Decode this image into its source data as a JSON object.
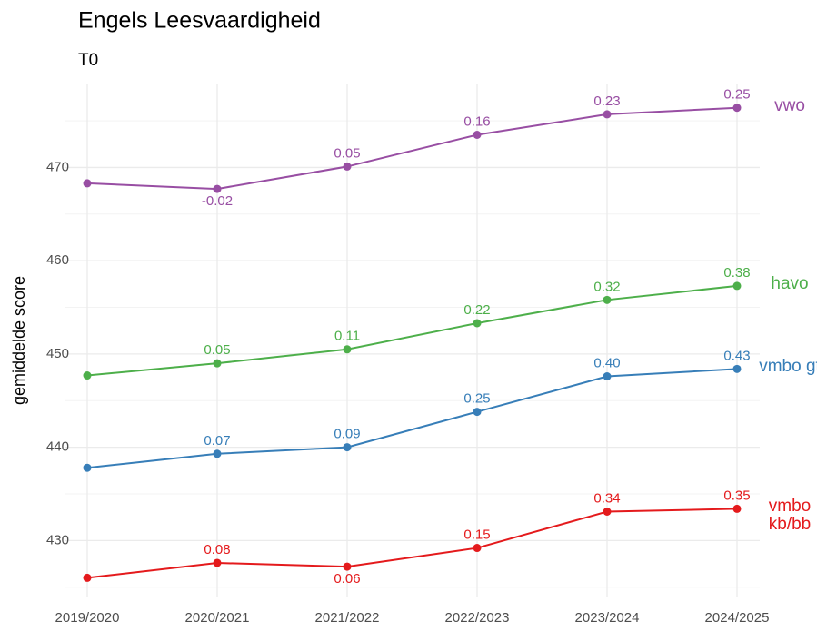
{
  "chart_data": {
    "type": "line",
    "title": "Engels Leesvaardigheid",
    "subtitle": "T0",
    "y_label": "gemiddelde score",
    "categories": [
      "2019/2020",
      "2020/2021",
      "2021/2022",
      "2022/2023",
      "2023/2024",
      "2024/2025"
    ],
    "series": [
      {
        "name": "vwo",
        "color": "#984ea3",
        "values": [
          468.3,
          467.7,
          470.1,
          473.5,
          475.7,
          476.4
        ],
        "annotations": [
          null,
          "-0.02",
          "0.05",
          "0.16",
          "0.23",
          "0.25"
        ]
      },
      {
        "name": "havo",
        "color": "#4daf4a",
        "values": [
          447.7,
          449.0,
          450.5,
          453.3,
          455.8,
          457.3
        ],
        "annotations": [
          null,
          "0.05",
          "0.11",
          "0.22",
          "0.32",
          "0.38"
        ]
      },
      {
        "name": "vmbo gt",
        "color": "#377eb8",
        "values": [
          437.8,
          439.3,
          440.0,
          443.8,
          447.6,
          448.4
        ],
        "annotations": [
          null,
          "0.07",
          "0.09",
          "0.25",
          "0.40",
          "0.43"
        ]
      },
      {
        "name": "vmbo kb/bb",
        "color": "#e41a1c",
        "values": [
          426.0,
          427.6,
          427.2,
          429.2,
          433.1,
          433.4
        ],
        "annotations": [
          null,
          "0.08",
          "0.06",
          "0.15",
          "0.34",
          "0.35"
        ]
      }
    ],
    "ylim": [
      423.9,
      479
    ],
    "yticks": [
      430,
      440,
      450,
      460,
      470
    ],
    "grid": true,
    "minor_grid": true
  }
}
